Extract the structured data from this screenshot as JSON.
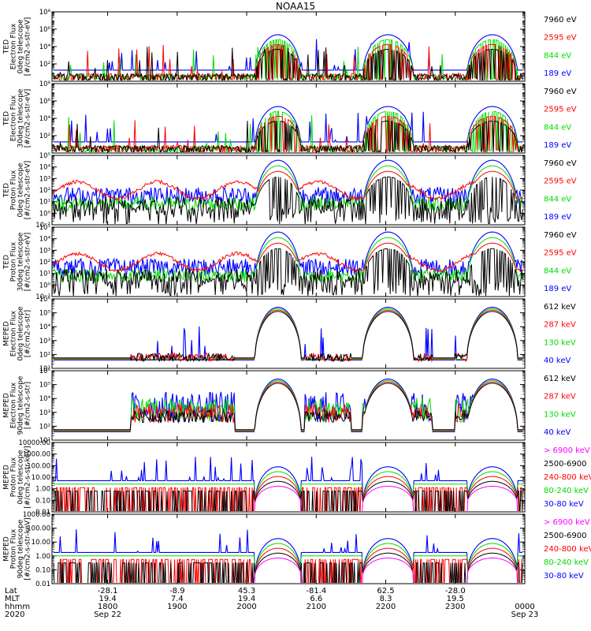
{
  "title": "NOAA15",
  "chart_data": [
    {
      "type": "line",
      "ylabel": [
        "TED",
        "Electron Flux",
        "0deg telescope",
        "[#/cm2-s-str-eV]"
      ],
      "ytick_labels": [
        "10^2",
        "10^4",
        "10^6",
        "10^8"
      ],
      "ylim": [
        1,
        100000000
      ],
      "yscale": "log",
      "series": [
        {
          "name": "7960 eV",
          "color": "#000000"
        },
        {
          "name": "2595 eV",
          "color": "#ff0000"
        },
        {
          "name": "844 eV",
          "color": "#00dd00"
        },
        {
          "name": "189 eV",
          "color": "#0000ff"
        }
      ]
    },
    {
      "type": "line",
      "ylabel": [
        "TED",
        "Electron Flux",
        "30deg telescope",
        "[#/cm2-s-str-eV]"
      ],
      "ytick_labels": [
        "10^2",
        "10^4",
        "10^6",
        "10^8"
      ],
      "ylim": [
        1,
        100000000
      ],
      "yscale": "log",
      "series": [
        {
          "name": "7960 eV",
          "color": "#000000"
        },
        {
          "name": "2595 eV",
          "color": "#ff0000"
        },
        {
          "name": "844 eV",
          "color": "#00dd00"
        },
        {
          "name": "189 eV",
          "color": "#0000ff"
        }
      ]
    },
    {
      "type": "line",
      "ylabel": [
        "TED",
        "Proton Flux",
        "0deg telescope",
        "[#/cm2-s-str-eV]"
      ],
      "ytick_labels": [
        "10^-1",
        "10^0",
        "10^1",
        "10^2",
        "10^3",
        "10^4",
        "10^5"
      ],
      "ylim": [
        0.1,
        100000
      ],
      "yscale": "log",
      "series": [
        {
          "name": "7960 eV",
          "color": "#000000"
        },
        {
          "name": "2595 eV",
          "color": "#ff0000"
        },
        {
          "name": "844 eV",
          "color": "#00dd00"
        },
        {
          "name": "189 eV",
          "color": "#0000ff"
        }
      ]
    },
    {
      "type": "line",
      "ylabel": [
        "TED",
        "Proton Flux",
        "30deg telescope",
        "[#/cm2-s-str-eV]"
      ],
      "ytick_labels": [
        "10^-1",
        "10^0",
        "10^1",
        "10^2",
        "10^3",
        "10^4",
        "10^5"
      ],
      "ylim": [
        0.1,
        100000
      ],
      "yscale": "log",
      "series": [
        {
          "name": "7960 eV",
          "color": "#000000"
        },
        {
          "name": "2595 eV",
          "color": "#ff0000"
        },
        {
          "name": "844 eV",
          "color": "#00dd00"
        },
        {
          "name": "189 eV",
          "color": "#0000ff"
        }
      ]
    },
    {
      "type": "line",
      "ylabel": [
        "MEPED",
        "Electron Flux",
        "0deg telescope",
        "[#/cm2-s-str]"
      ],
      "ytick_labels": [
        "10^1",
        "10^2",
        "10^3",
        "10^4",
        "10^5",
        "10^6"
      ],
      "ylim": [
        10,
        1000000
      ],
      "yscale": "log",
      "series": [
        {
          "name": "612 keV",
          "color": "#000000"
        },
        {
          "name": "287 keV",
          "color": "#ff0000"
        },
        {
          "name": "130 keV",
          "color": "#00dd00"
        },
        {
          "name": "40 keV",
          "color": "#0000ff"
        }
      ]
    },
    {
      "type": "line",
      "ylabel": [
        "MEPED",
        "Electron Flux",
        "90deg telescope",
        "[#/cm2-s-str]"
      ],
      "ytick_labels": [
        "10^1",
        "10^2",
        "10^3",
        "10^4",
        "10^5",
        "10^6"
      ],
      "ylim": [
        10,
        1000000
      ],
      "yscale": "log",
      "series": [
        {
          "name": "612 keV",
          "color": "#000000"
        },
        {
          "name": "287 keV",
          "color": "#ff0000"
        },
        {
          "name": "130 keV",
          "color": "#00dd00"
        },
        {
          "name": "40 keV",
          "color": "#0000ff"
        }
      ]
    },
    {
      "type": "line",
      "ylabel": [
        "MEPED",
        "Proton Flux",
        "0deg telescope",
        "[#/cm2-s-str-keV]"
      ],
      "ytick_labels": [
        "0.01",
        "0.10",
        "1.00",
        "10.00",
        "100.00",
        "1000.00",
        "10000.00"
      ],
      "ylim": [
        0.01,
        10000
      ],
      "yscale": "log",
      "series": [
        {
          "name": "> 6900 keV",
          "color": "#ff00ff"
        },
        {
          "name": "2500-6900",
          "color": "#000000"
        },
        {
          "name": "240-800 keV",
          "color": "#ff0000"
        },
        {
          "name": "80-240 keV",
          "color": "#00dd00"
        },
        {
          "name": "30-80 keV",
          "color": "#0000ff"
        }
      ]
    },
    {
      "type": "line",
      "ylabel": [
        "MEPED",
        "Proton Flux",
        "90deg telescope",
        "[#/cm2-s-str-keV]"
      ],
      "ytick_labels": [
        "0.01",
        "0.10",
        "1.00",
        "10.00",
        "100.00",
        "1000.00"
      ],
      "ylim": [
        0.01,
        1000
      ],
      "yscale": "log",
      "series": [
        {
          "name": "> 6900 keV",
          "color": "#ff00ff"
        },
        {
          "name": "2500-6900",
          "color": "#000000"
        },
        {
          "name": "240-800 keV",
          "color": "#ff0000"
        },
        {
          "name": "80-240 keV",
          "color": "#00dd00"
        },
        {
          "name": "30-80 keV",
          "color": "#0000ff"
        }
      ]
    }
  ],
  "xaxis": {
    "row_labels": [
      "Lat",
      "MLT",
      "hhmm",
      "2020"
    ],
    "start_label": "Sep 22",
    "end_label": "Sep 23",
    "ticks": [
      {
        "lat": "-28.1",
        "mlt": "19.4",
        "time": "1800"
      },
      {
        "lat": "-8.9",
        "mlt": "7.4",
        "time": "1900"
      },
      {
        "lat": "45.3",
        "mlt": "19.4",
        "time": "2000"
      },
      {
        "lat": "-81.4",
        "mlt": "6.6",
        "time": "2100"
      },
      {
        "lat": "62.5",
        "mlt": "8.3",
        "time": "2200"
      },
      {
        "lat": "-28.0",
        "mlt": "19.5",
        "time": "2300"
      },
      {
        "lat": "",
        "mlt": "",
        "time": "0000"
      }
    ]
  }
}
